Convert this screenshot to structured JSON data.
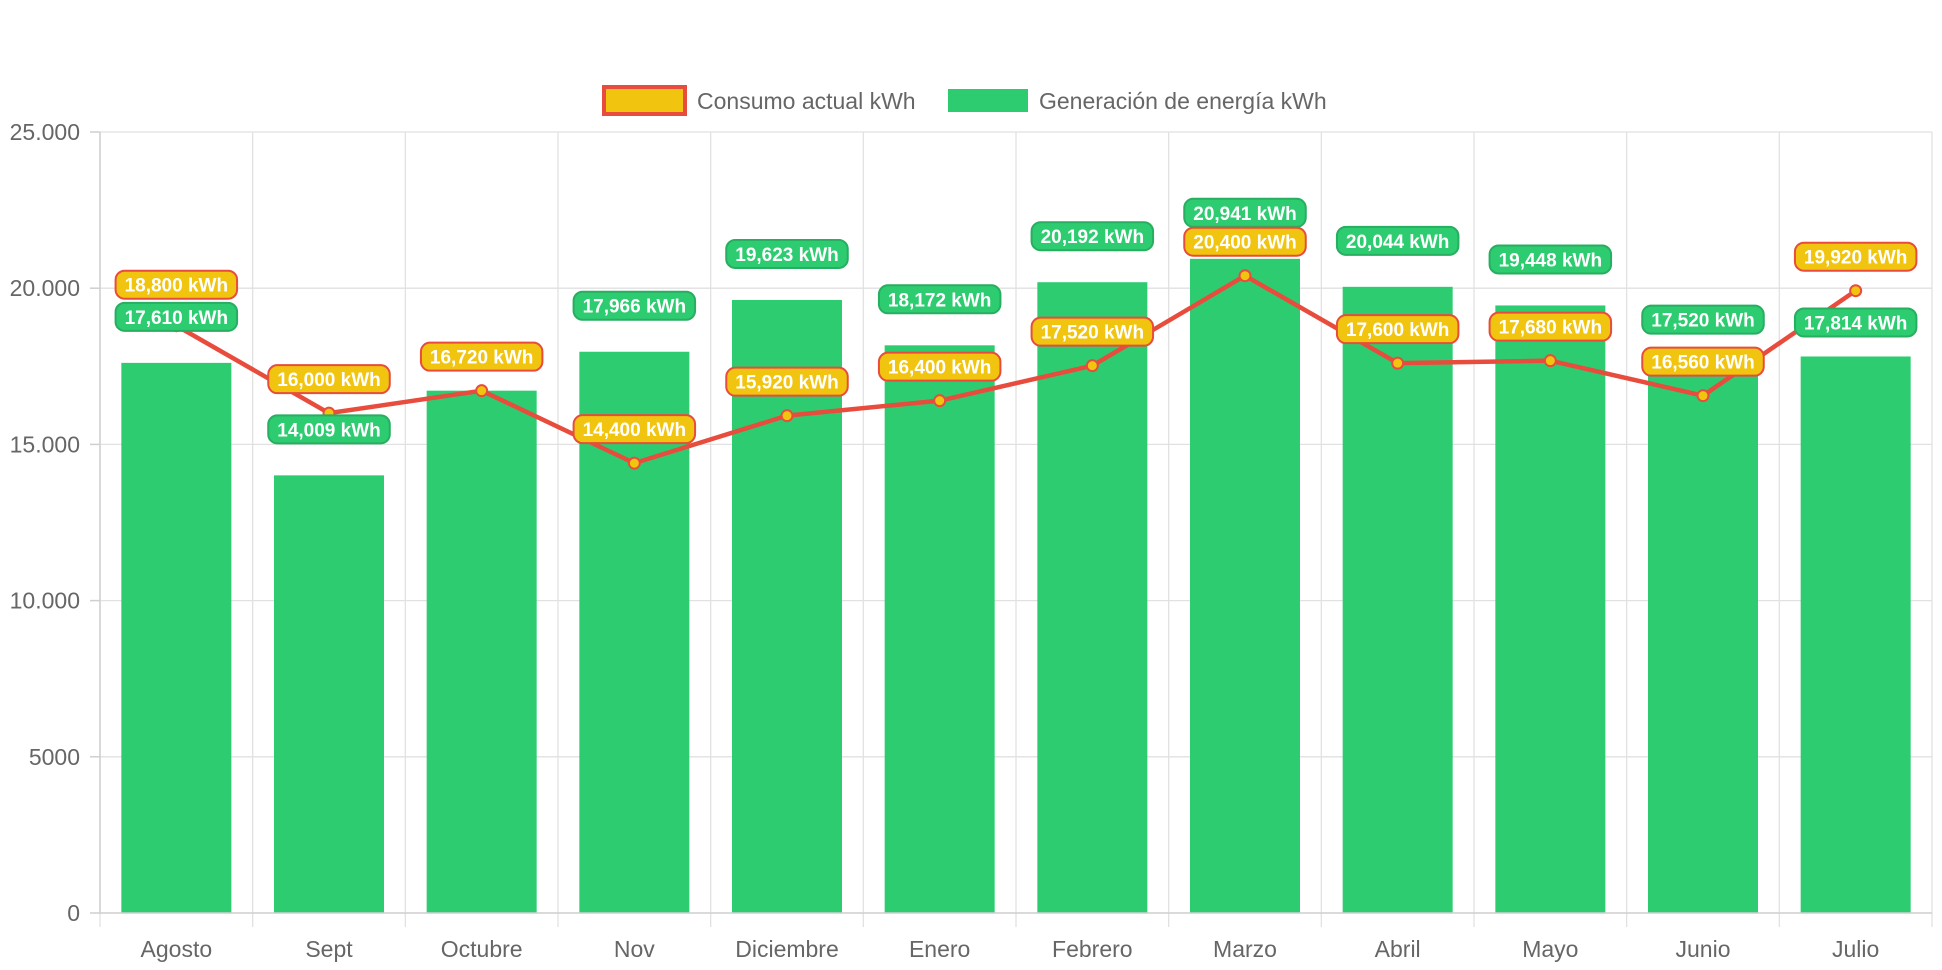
{
  "chart_data": {
    "type": "bar",
    "title": "",
    "xlabel": "",
    "ylabel": "",
    "ylim": [
      0,
      25000
    ],
    "yticks": [
      0,
      5000,
      10000,
      15000,
      20000,
      25000
    ],
    "ytick_labels": [
      "0",
      "5000",
      "10.000",
      "15.000",
      "20.000",
      "25.000"
    ],
    "grid": true,
    "legend_position": "top-center",
    "categories": [
      "Agosto",
      "Sept",
      "Octubre",
      "Nov",
      "Diciembre",
      "Enero",
      "Febrero",
      "Marzo",
      "Abril",
      "Mayo",
      "Junio",
      "Julio"
    ],
    "series": [
      {
        "name": "Consumo actual kWh",
        "type": "line",
        "color": "#e74c3c",
        "point_fill": "#f1c40f",
        "values": [
          18800,
          16000,
          16720,
          14400,
          15920,
          16400,
          17520,
          20400,
          17600,
          17680,
          16560,
          19920
        ],
        "labels": [
          "18,800 kWh",
          "16,000 kWh",
          "16,720 kWh",
          "14,400 kWh",
          "15,920 kWh",
          "16,400 kWh",
          "17,520 kWh",
          "20,400 kWh",
          "17,600 kWh",
          "17,680 kWh",
          "16,560 kWh",
          "19,920 kWh"
        ]
      },
      {
        "name": "Generación de energía kWh",
        "type": "bar",
        "color": "#2ecc71",
        "values": [
          17610,
          14009,
          16720,
          17966,
          19623,
          18172,
          20192,
          20941,
          20044,
          19448,
          17520,
          17814
        ],
        "labels": [
          "17,610 kWh",
          "14,009 kWh",
          "",
          "17,966 kWh",
          "19,623 kWh",
          "18,172 kWh",
          "20,192 kWh",
          "20,941 kWh",
          "20,044 kWh",
          "19,448 kWh",
          "17,520 kWh",
          "17,814 kWh"
        ]
      }
    ]
  }
}
